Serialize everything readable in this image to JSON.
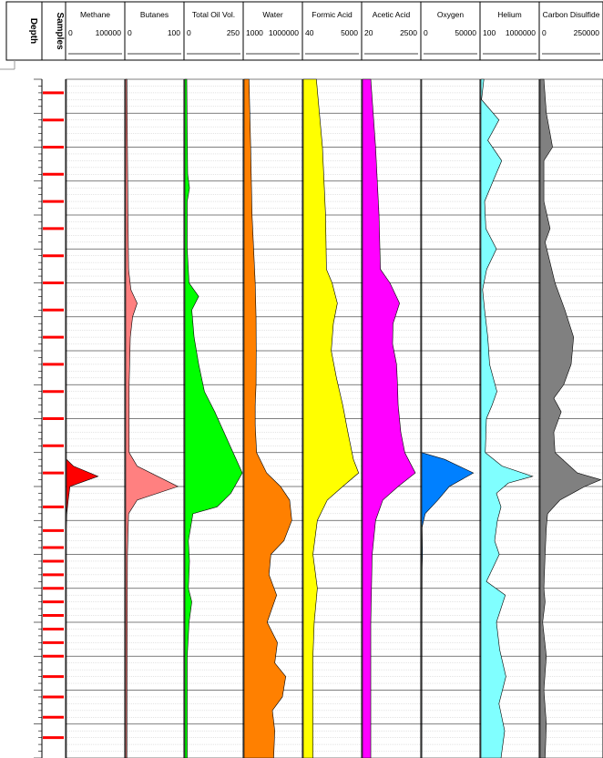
{
  "chart_data": {
    "type": "area",
    "orientation": "vertical-depth-log",
    "fixed_columns": [
      "Depth",
      "Samples"
    ],
    "grid": true,
    "depth_range": [
      0,
      100
    ],
    "samples": [
      2,
      6,
      10,
      14,
      18,
      22,
      26,
      30,
      34,
      38,
      42,
      46,
      50,
      54,
      58,
      63,
      66.5,
      69,
      71,
      73,
      75,
      77,
      79,
      81,
      83,
      85,
      88,
      91,
      94,
      97
    ],
    "tracks": [
      {
        "name": "Methane",
        "min": "0",
        "max": "100000",
        "color": "#ff0000",
        "range": [
          0,
          100000
        ],
        "curve": [
          [
            0,
            0
          ],
          [
            56,
            0
          ],
          [
            57,
            12000
          ],
          [
            58.5,
            55000
          ],
          [
            60,
            6000
          ],
          [
            62,
            3000
          ],
          [
            64,
            500
          ],
          [
            66,
            0
          ],
          [
            100,
            0
          ]
        ]
      },
      {
        "name": "Butanes",
        "min": "0",
        "max": "100",
        "color": "#ff8080",
        "range": [
          0,
          100
        ],
        "curve": [
          [
            0,
            2
          ],
          [
            10,
            3
          ],
          [
            20,
            4
          ],
          [
            28,
            5
          ],
          [
            31,
            9
          ],
          [
            33,
            20
          ],
          [
            35,
            12
          ],
          [
            38,
            8
          ],
          [
            45,
            6
          ],
          [
            55,
            6
          ],
          [
            57,
            20
          ],
          [
            60,
            91
          ],
          [
            62,
            20
          ],
          [
            64,
            5
          ],
          [
            70,
            3
          ],
          [
            100,
            2
          ]
        ]
      },
      {
        "name": "Total Oil Vol.",
        "min": "0",
        "max": "250",
        "color": "#00ff00",
        "range": [
          0,
          250
        ],
        "curve": [
          [
            0,
            8
          ],
          [
            8,
            10
          ],
          [
            14,
            12
          ],
          [
            16,
            20
          ],
          [
            18,
            10
          ],
          [
            25,
            10
          ],
          [
            30,
            18
          ],
          [
            32,
            60
          ],
          [
            34,
            30
          ],
          [
            38,
            40
          ],
          [
            42,
            60
          ],
          [
            46,
            85
          ],
          [
            49,
            130
          ],
          [
            52,
            170
          ],
          [
            55,
            210
          ],
          [
            58,
            250
          ],
          [
            61,
            200
          ],
          [
            63,
            140
          ],
          [
            64,
            35
          ],
          [
            68,
            15
          ],
          [
            71,
            20
          ],
          [
            75,
            15
          ],
          [
            77,
            30
          ],
          [
            80,
            18
          ],
          [
            85,
            10
          ],
          [
            100,
            10
          ]
        ]
      },
      {
        "name": "Water",
        "min": "1000",
        "max": "1000000",
        "color": "#ff8000",
        "range": [
          1000,
          1000000
        ],
        "curve": [
          [
            0,
            1800
          ],
          [
            10,
            2200
          ],
          [
            20,
            2600
          ],
          [
            30,
            3800
          ],
          [
            35,
            4200
          ],
          [
            40,
            4300
          ],
          [
            45,
            4200
          ],
          [
            48,
            3800
          ],
          [
            51,
            3800
          ],
          [
            55,
            4500
          ],
          [
            58,
            15000
          ],
          [
            60,
            80000
          ],
          [
            62,
            240000
          ],
          [
            65,
            310000
          ],
          [
            68,
            120000
          ],
          [
            70,
            25000
          ],
          [
            73,
            20000
          ],
          [
            76,
            50000
          ],
          [
            80,
            16000
          ],
          [
            83,
            55000
          ],
          [
            86,
            40000
          ],
          [
            88,
            150000
          ],
          [
            91,
            100000
          ],
          [
            93,
            30000
          ],
          [
            96,
            40000
          ],
          [
            100,
            35000
          ]
        ]
      },
      {
        "name": "Formic Acid",
        "min": "40",
        "max": "5000",
        "color": "#ffff00",
        "range": [
          40,
          5000
        ],
        "curve": [
          [
            0,
            120
          ],
          [
            10,
            200
          ],
          [
            20,
            260
          ],
          [
            28,
            280
          ],
          [
            30,
            450
          ],
          [
            33,
            700
          ],
          [
            36,
            500
          ],
          [
            40,
            420
          ],
          [
            44,
            650
          ],
          [
            48,
            1100
          ],
          [
            52,
            1700
          ],
          [
            56,
            2700
          ],
          [
            58,
            4200
          ],
          [
            60,
            1100
          ],
          [
            62,
            300
          ],
          [
            65,
            130
          ],
          [
            70,
            90
          ],
          [
            75,
            130
          ],
          [
            80,
            100
          ],
          [
            85,
            90
          ],
          [
            100,
            90
          ]
        ]
      },
      {
        "name": "Acetic  Acid",
        "min": "20",
        "max": "2500",
        "color": "#ff00ff",
        "range": [
          20,
          2500
        ],
        "curve": [
          [
            0,
            40
          ],
          [
            10,
            60
          ],
          [
            20,
            80
          ],
          [
            28,
            90
          ],
          [
            30,
            200
          ],
          [
            33,
            450
          ],
          [
            36,
            260
          ],
          [
            39,
            250
          ],
          [
            42,
            350
          ],
          [
            45,
            380
          ],
          [
            48,
            400
          ],
          [
            52,
            500
          ],
          [
            55,
            700
          ],
          [
            58,
            1700
          ],
          [
            60,
            400
          ],
          [
            62,
            110
          ],
          [
            65,
            60
          ],
          [
            70,
            45
          ],
          [
            80,
            40
          ],
          [
            100,
            40
          ]
        ]
      },
      {
        "name": "Oxygen",
        "min": "0",
        "max": "50000",
        "color": "#0080ff",
        "range": [
          0,
          50000
        ],
        "curve": [
          [
            0,
            0
          ],
          [
            55,
            0
          ],
          [
            56,
            20000
          ],
          [
            58,
            45000
          ],
          [
            60,
            24000
          ],
          [
            62,
            14000
          ],
          [
            64,
            3000
          ],
          [
            66,
            300
          ],
          [
            70,
            600
          ],
          [
            72,
            300
          ],
          [
            80,
            200
          ],
          [
            100,
            100
          ]
        ]
      },
      {
        "name": "Helium",
        "min": "100",
        "max": "1000000",
        "color": "#80ffff",
        "range": [
          100,
          1000000
        ],
        "curve": [
          [
            0,
            160
          ],
          [
            3,
            110
          ],
          [
            6,
            1800
          ],
          [
            9,
            300
          ],
          [
            12,
            2800
          ],
          [
            15,
            700
          ],
          [
            18,
            180
          ],
          [
            22,
            220
          ],
          [
            25,
            1200
          ],
          [
            28,
            250
          ],
          [
            31,
            130
          ],
          [
            34,
            180
          ],
          [
            38,
            300
          ],
          [
            42,
            400
          ],
          [
            46,
            1300
          ],
          [
            48,
            600
          ],
          [
            50,
            240
          ],
          [
            55,
            200
          ],
          [
            57,
            3000
          ],
          [
            58.5,
            400000
          ],
          [
            59.5,
            8000
          ],
          [
            61,
            1200
          ],
          [
            63,
            2500
          ],
          [
            65,
            1400
          ],
          [
            68,
            900
          ],
          [
            70,
            1900
          ],
          [
            74,
            240
          ],
          [
            76,
            5000
          ],
          [
            80,
            1200
          ],
          [
            84,
            2000
          ],
          [
            88,
            5500
          ],
          [
            92,
            1800
          ],
          [
            96,
            4500
          ],
          [
            100,
            2500
          ]
        ]
      },
      {
        "name": "Carbon Disulfide",
        "min": "0",
        "max": "250000",
        "color": "#808080",
        "range": [
          0,
          250000
        ],
        "curve": [
          [
            0,
            15000
          ],
          [
            5,
            25000
          ],
          [
            10,
            50000
          ],
          [
            12,
            15000
          ],
          [
            18,
            15000
          ],
          [
            22,
            40000
          ],
          [
            24,
            20000
          ],
          [
            27,
            40000
          ],
          [
            30,
            60000
          ],
          [
            34,
            100000
          ],
          [
            38,
            135000
          ],
          [
            42,
            125000
          ],
          [
            45,
            95000
          ],
          [
            47,
            55000
          ],
          [
            49,
            85000
          ],
          [
            52,
            55000
          ],
          [
            55,
            60000
          ],
          [
            58,
            150000
          ],
          [
            59,
            245000
          ],
          [
            60,
            180000
          ],
          [
            62,
            80000
          ],
          [
            64,
            30000
          ],
          [
            66,
            25000
          ],
          [
            70,
            20000
          ],
          [
            75,
            15000
          ],
          [
            77,
            20000
          ],
          [
            80,
            10000
          ],
          [
            85,
            25000
          ],
          [
            90,
            15000
          ],
          [
            95,
            25000
          ],
          [
            100,
            20000
          ]
        ]
      }
    ]
  }
}
